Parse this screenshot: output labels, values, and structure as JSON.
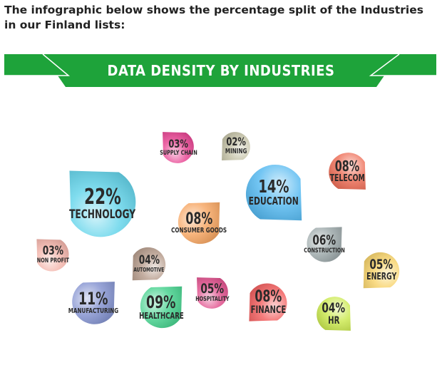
{
  "intro_text": "The infographic below shows the percentage split of the Industries in our Finland lists:",
  "banner": {
    "title": "DATA DENSITY BY INDUSTRIES",
    "color": "#1ea33a"
  },
  "chart_data": {
    "type": "bubble",
    "title": "DATA DENSITY BY INDUSTRIES",
    "unit": "%",
    "categories": [
      "TECHNOLOGY",
      "EDUCATION",
      "TELECOM",
      "CONSUMER GOODS",
      "CONSTRUCTION",
      "ENERGY",
      "HR",
      "FINANCE",
      "HOSPITALITY",
      "HEALTHCARE",
      "MANUFACTURING",
      "AUTOMOTIVE",
      "NON PROFIT",
      "SUPPLY CHAIN",
      "MINING"
    ],
    "values": [
      22,
      14,
      8,
      8,
      6,
      5,
      4,
      8,
      5,
      9,
      11,
      4,
      3,
      3,
      2
    ],
    "labels": [
      "22%",
      "14%",
      "08%",
      "08%",
      "06%",
      "05%",
      "04%",
      "08%",
      "05%",
      "09%",
      "11%",
      "04%",
      "03%",
      "03%",
      "02%"
    ],
    "colors": [
      "#5fd3ea",
      "#4fb6f0",
      "#ee6a52",
      "#f6a25c",
      "#9aa6a8",
      "#f7d267",
      "#c9e84a",
      "#f25b5b",
      "#e04b8a",
      "#3fd08a",
      "#7f8fce",
      "#b59a8a",
      "#f3b2a8",
      "#e73e8f",
      "#c4c2a6"
    ],
    "legend": "none",
    "grid": false
  }
}
